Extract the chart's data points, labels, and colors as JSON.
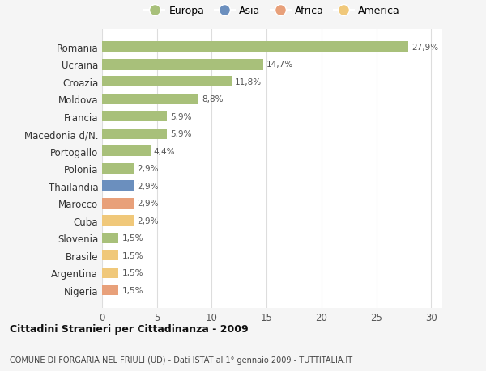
{
  "countries": [
    "Romania",
    "Ucraina",
    "Croazia",
    "Moldova",
    "Francia",
    "Macedonia d/N.",
    "Portogallo",
    "Polonia",
    "Thailandia",
    "Marocco",
    "Cuba",
    "Slovenia",
    "Brasile",
    "Argentina",
    "Nigeria"
  ],
  "values": [
    27.9,
    14.7,
    11.8,
    8.8,
    5.9,
    5.9,
    4.4,
    2.9,
    2.9,
    2.9,
    2.9,
    1.5,
    1.5,
    1.5,
    1.5
  ],
  "labels": [
    "27,9%",
    "14,7%",
    "11,8%",
    "8,8%",
    "5,9%",
    "5,9%",
    "4,4%",
    "2,9%",
    "2,9%",
    "2,9%",
    "2,9%",
    "1,5%",
    "1,5%",
    "1,5%",
    "1,5%"
  ],
  "colors": [
    "#a8c07a",
    "#a8c07a",
    "#a8c07a",
    "#a8c07a",
    "#a8c07a",
    "#a8c07a",
    "#a8c07a",
    "#a8c07a",
    "#6b8fbe",
    "#e8a07a",
    "#f0c87a",
    "#a8c07a",
    "#f0c87a",
    "#f0c87a",
    "#e8a07a"
  ],
  "legend_labels": [
    "Europa",
    "Asia",
    "Africa",
    "America"
  ],
  "legend_colors": [
    "#a8c07a",
    "#6b8fbe",
    "#e8a07a",
    "#f0c87a"
  ],
  "title": "Cittadini Stranieri per Cittadinanza - 2009",
  "subtitle": "COMUNE DI FORGARIA NEL FRIULI (UD) - Dati ISTAT al 1° gennaio 2009 - TUTTITALIA.IT",
  "xlim": [
    0,
    31
  ],
  "xticks": [
    0,
    5,
    10,
    15,
    20,
    25,
    30
  ],
  "background_color": "#f5f5f5",
  "bar_background": "#ffffff",
  "grid_color": "#dddddd"
}
